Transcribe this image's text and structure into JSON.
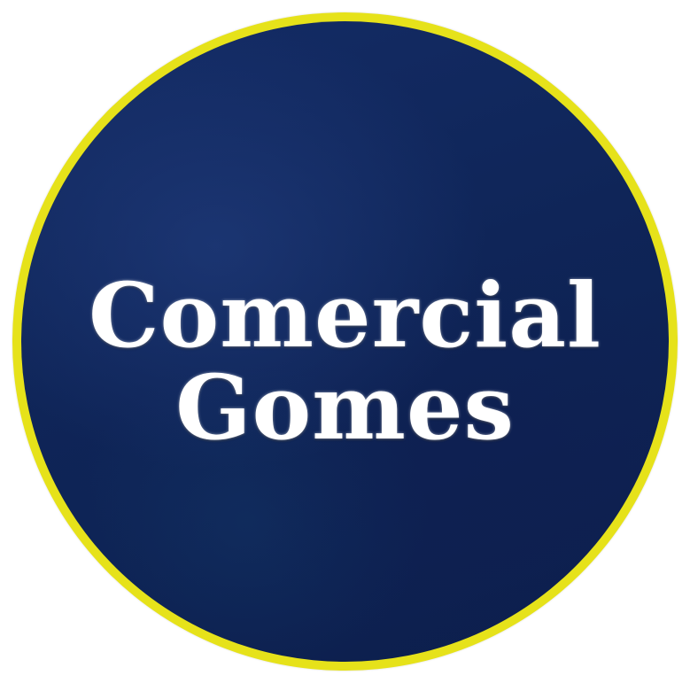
{
  "logo": {
    "line1": "Comercial",
    "line2": "Gomes",
    "colors": {
      "ring": "#e6e21a",
      "background": "#0f2558",
      "text": "#ffffff"
    }
  }
}
